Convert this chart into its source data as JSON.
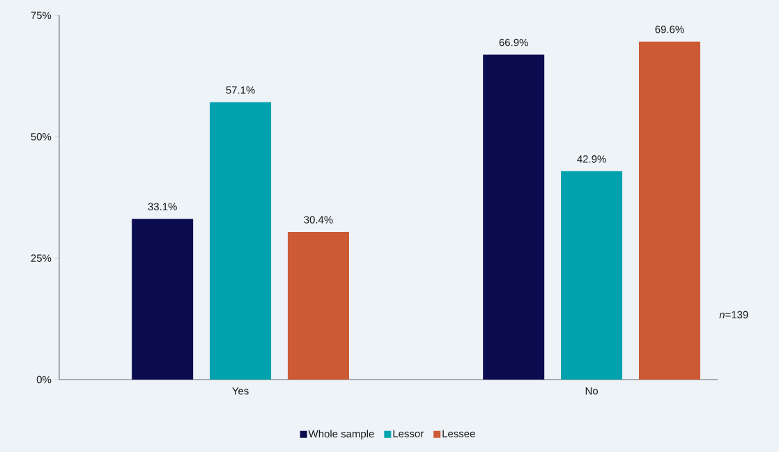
{
  "chart_data": {
    "type": "bar",
    "categories": [
      "Yes",
      "No"
    ],
    "series": [
      {
        "name": "Whole sample",
        "color": "#0b0b4f",
        "values": [
          33.1,
          66.9
        ],
        "value_labels": [
          "33.1%",
          "66.9%"
        ]
      },
      {
        "name": "Lessor",
        "color": "#00a3ad",
        "values": [
          57.1,
          42.9
        ],
        "value_labels": [
          "57.1%",
          "42.9%"
        ]
      },
      {
        "name": "Lessee",
        "color": "#cc5a34",
        "values": [
          30.4,
          69.6
        ],
        "value_labels": [
          "30.4%",
          "69.6%"
        ]
      }
    ],
    "ylim": [
      0,
      75
    ],
    "yticks": [
      {
        "value": 0,
        "label": "0%"
      },
      {
        "value": 25,
        "label": "25%"
      },
      {
        "value": 50,
        "label": "50%"
      },
      {
        "value": 75,
        "label": "75%"
      }
    ],
    "legend": "bottom",
    "annotations": [
      "*n*=139"
    ]
  }
}
